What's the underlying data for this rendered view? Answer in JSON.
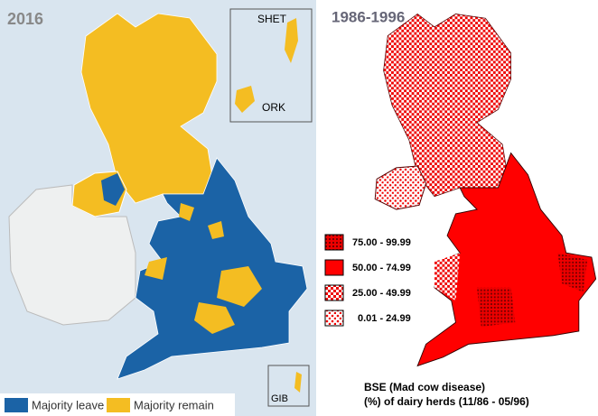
{
  "left_map": {
    "title": "2016",
    "inset_labels": [
      "SHET",
      "ORK",
      "GIB"
    ],
    "legend": [
      {
        "label": "Majority leave",
        "color": "#1b63a6"
      },
      {
        "label": "Majority remain",
        "color": "#f4bd22"
      }
    ]
  },
  "right_map": {
    "title": "1986-1996",
    "legend": [
      {
        "label": "75.00 - 99.99"
      },
      {
        "label": "50.00 - 74.99"
      },
      {
        "label": "25.00 - 49.99"
      },
      {
        "label": "0.01 - 24.99"
      }
    ],
    "caption": [
      "BSE (Mad cow disease)",
      "(%) of dairy herds (11/86 - 05/96)"
    ]
  }
}
